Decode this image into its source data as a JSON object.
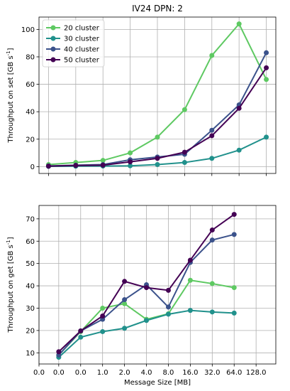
{
  "chart_data": [
    {
      "type": "line",
      "title": "IV24 DPN: 2",
      "xlabel": "",
      "ylabel": "Throughput on set [GB s",
      "ylabel_sup": "-1",
      "ylabel_suffix": "]",
      "x_tick_labels": [],
      "ylim": [
        -5,
        109
      ],
      "yticks": [
        0,
        20,
        40,
        60,
        80,
        100
      ],
      "grid": true,
      "legend": "top-left",
      "series": [
        {
          "name": "20 cluster",
          "color": "#5ec962",
          "values": [
            1.5,
            3,
            4.5,
            10,
            21.5,
            41.5,
            81,
            104,
            63.5
          ]
        },
        {
          "name": "30 cluster",
          "color": "#21918c",
          "values": [
            0.2,
            0.3,
            0.4,
            0.6,
            1.5,
            3,
            6,
            12,
            21.5
          ]
        },
        {
          "name": "40 cluster",
          "color": "#3b528b",
          "values": [
            0.5,
            1,
            1.5,
            5,
            7,
            9,
            26.5,
            45,
            83
          ]
        },
        {
          "name": "50 cluster",
          "color": "#440154",
          "values": [
            0.3,
            0.8,
            1,
            3.5,
            6,
            10.5,
            22.5,
            42.5,
            72
          ]
        }
      ]
    },
    {
      "type": "line",
      "title": "",
      "xlabel": "Message Size [MB]",
      "ylabel": "Throughput on get [GB s",
      "ylabel_sup": "-1",
      "ylabel_suffix": "]",
      "x_tick_labels": [
        "0.0",
        "0.0",
        "0.0",
        "1.0",
        "2.0",
        "4.0",
        "8.0",
        "16.0",
        "32.0",
        "64.0",
        "128.0"
      ],
      "ylim": [
        5,
        76
      ],
      "yticks": [
        10,
        20,
        30,
        40,
        50,
        60,
        70
      ],
      "grid": true,
      "legend": "none",
      "series": [
        {
          "name": "20 cluster",
          "color": "#5ec962",
          "values": [
            9,
            19.5,
            30,
            32,
            25,
            27.5,
            42.5,
            41,
            39.2
          ]
        },
        {
          "name": "30 cluster",
          "color": "#21918c",
          "values": [
            8,
            17,
            19.5,
            21,
            24.5,
            27.3,
            29,
            28.3,
            27.8
          ]
        },
        {
          "name": "40 cluster",
          "color": "#3b528b",
          "values": [
            9,
            19.8,
            25,
            33.8,
            40.5,
            30.5,
            50.5,
            60.5,
            63
          ]
        },
        {
          "name": "50 cluster",
          "color": "#440154",
          "values": [
            10.5,
            19.8,
            26.5,
            42,
            39.2,
            38,
            51.5,
            65,
            72
          ]
        }
      ]
    }
  ]
}
